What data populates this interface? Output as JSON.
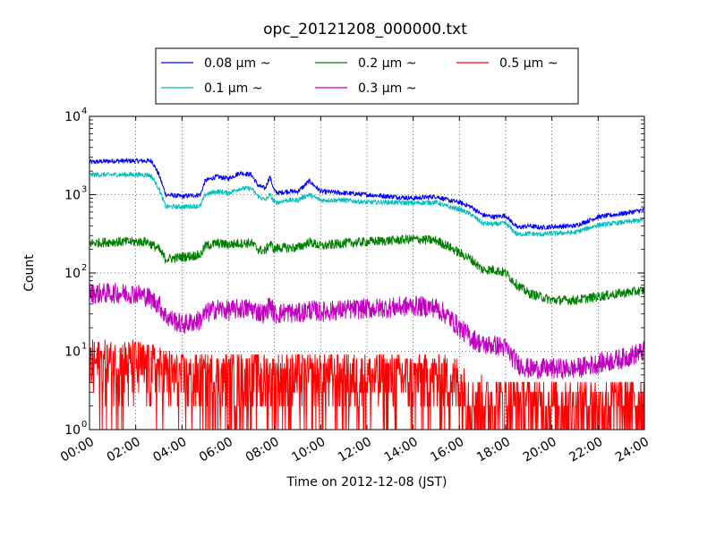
{
  "chart_data": {
    "type": "line",
    "title": "opc_20121208_000000.txt",
    "xlabel": "Time on 2012-12-08 (JST)",
    "ylabel": "Count",
    "yscale": "log",
    "ylim": [
      1,
      10000
    ],
    "xlim": [
      0,
      24
    ],
    "x_unit": "hours",
    "xticks": [
      0,
      2,
      4,
      6,
      8,
      10,
      12,
      14,
      16,
      18,
      20,
      22,
      24
    ],
    "xtick_labels": [
      "00:00",
      "02:00",
      "04:00",
      "06:00",
      "08:00",
      "10:00",
      "12:00",
      "14:00",
      "16:00",
      "18:00",
      "20:00",
      "22:00",
      "24:00"
    ],
    "ytick_labels": [
      {
        "base": "10",
        "exp": "0"
      },
      {
        "base": "10",
        "exp": "1"
      },
      {
        "base": "10",
        "exp": "2"
      },
      {
        "base": "10",
        "exp": "3"
      },
      {
        "base": "10",
        "exp": "4"
      }
    ],
    "grid": true,
    "legend_placement": "top-center",
    "series": [
      {
        "name": "0.08 μm ~",
        "color": "#0000ff",
        "x": [
          0,
          1,
          2,
          2.5,
          2.7,
          3,
          3.3,
          4,
          4.8,
          5,
          5.5,
          6,
          6.5,
          7,
          7.3,
          7.6,
          7.8,
          8,
          8.2,
          8.5,
          9,
          9.3,
          9.5,
          10,
          11,
          12,
          13,
          14,
          15,
          15.5,
          16,
          16.5,
          17,
          17.5,
          18,
          18.5,
          19,
          19.5,
          20,
          21,
          22,
          23,
          24
        ],
        "y": [
          2600,
          2700,
          2700,
          2700,
          2700,
          1800,
          1000,
          950,
          1000,
          1500,
          1700,
          1600,
          1900,
          1800,
          1300,
          1200,
          1700,
          1100,
          1050,
          1100,
          1100,
          1300,
          1500,
          1100,
          1050,
          1000,
          950,
          900,
          950,
          850,
          800,
          700,
          550,
          520,
          540,
          380,
          400,
          380,
          390,
          400,
          520,
          570,
          640
        ]
      },
      {
        "name": "0.1 μm ~",
        "color": "#00bfbf",
        "x": [
          0,
          1,
          2,
          2.5,
          2.7,
          3,
          3.3,
          4,
          4.8,
          5,
          5.5,
          6,
          6.5,
          7,
          7.3,
          7.6,
          7.8,
          8,
          8.2,
          8.5,
          9,
          9.3,
          9.5,
          10,
          11,
          12,
          13,
          14,
          15,
          15.5,
          16,
          16.5,
          17,
          17.5,
          18,
          18.5,
          19,
          19.5,
          20,
          21,
          22,
          23,
          24
        ],
        "y": [
          1800,
          1800,
          1800,
          1800,
          1700,
          1200,
          700,
          700,
          720,
          1000,
          1100,
          1050,
          1200,
          1200,
          950,
          850,
          1000,
          800,
          800,
          850,
          850,
          950,
          1000,
          850,
          850,
          800,
          800,
          780,
          800,
          700,
          650,
          560,
          430,
          420,
          430,
          310,
          320,
          310,
          320,
          330,
          410,
          440,
          480
        ]
      },
      {
        "name": "0.2 μm ~",
        "color": "#008000",
        "x": [
          0,
          1,
          2,
          2.5,
          2.7,
          3,
          3.3,
          4,
          4.8,
          5,
          5.5,
          6,
          6.5,
          7,
          7.3,
          7.6,
          7.8,
          8,
          8.2,
          8.5,
          9,
          9.3,
          9.5,
          10,
          11,
          12,
          13,
          14,
          15,
          15.5,
          16,
          16.5,
          17,
          17.5,
          18,
          18.5,
          19,
          19.5,
          20,
          21,
          22,
          23,
          24
        ],
        "y": [
          240,
          250,
          250,
          250,
          230,
          200,
          150,
          160,
          170,
          220,
          240,
          230,
          240,
          240,
          200,
          190,
          240,
          200,
          210,
          210,
          210,
          230,
          250,
          220,
          240,
          250,
          260,
          270,
          260,
          220,
          180,
          150,
          110,
          110,
          100,
          70,
          55,
          50,
          45,
          45,
          50,
          55,
          60
        ]
      },
      {
        "name": "0.3 μm ~",
        "color": "#bf00bf",
        "x": [
          0,
          1,
          2,
          2.5,
          2.7,
          3,
          3.3,
          4,
          4.8,
          5,
          5.5,
          6,
          6.5,
          7,
          7.3,
          7.6,
          7.8,
          8,
          8.2,
          8.5,
          9,
          9.3,
          9.5,
          10,
          11,
          12,
          13,
          14,
          15,
          15.5,
          16,
          16.5,
          17,
          17.5,
          18,
          18.5,
          19,
          19.5,
          20,
          21,
          22,
          23,
          24
        ],
        "y": [
          55,
          55,
          55,
          50,
          45,
          40,
          28,
          22,
          25,
          30,
          35,
          33,
          35,
          35,
          32,
          30,
          40,
          30,
          30,
          32,
          30,
          32,
          34,
          32,
          34,
          35,
          36,
          38,
          36,
          28,
          20,
          15,
          12,
          12,
          11,
          7,
          6,
          6,
          6,
          6,
          7,
          8,
          10
        ]
      },
      {
        "name": "0.5 μm ~",
        "color": "#ff0000",
        "x": [
          0,
          1,
          2,
          3,
          4,
          6,
          8,
          10,
          12,
          14,
          15.5,
          16,
          16.5,
          17,
          18,
          20,
          22,
          24
        ],
        "y": [
          6,
          6,
          6,
          5,
          4,
          4,
          4,
          4,
          4,
          4,
          4,
          3.5,
          2,
          2,
          2,
          1.8,
          1.8,
          2
        ]
      }
    ]
  }
}
